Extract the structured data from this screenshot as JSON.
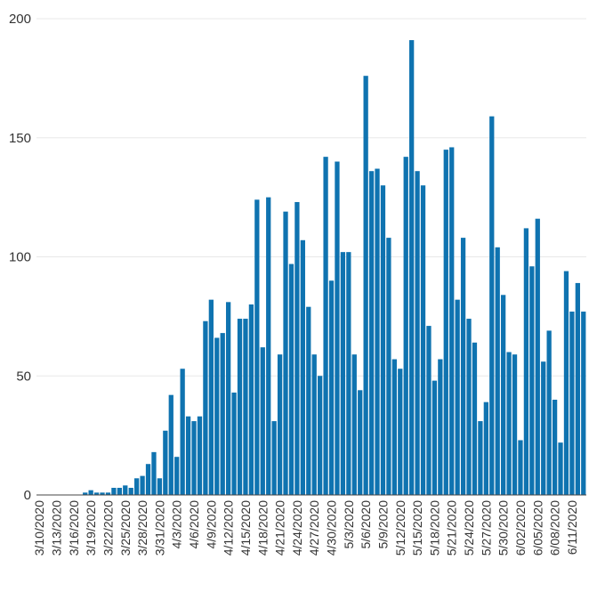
{
  "chart_data": {
    "type": "bar",
    "title": "",
    "xlabel": "",
    "ylabel": "",
    "ylim": [
      0,
      200
    ],
    "yticks": [
      0,
      50,
      100,
      150,
      200
    ],
    "grid": true,
    "bar_color": "#0f73b0",
    "x_tick_labels": [
      "3/10/2020",
      "3/13/2020",
      "3/16/2020",
      "3/19/2020",
      "3/22/2020",
      "3/25/2020",
      "3/28/2020",
      "3/31/2020",
      "4/3/2020",
      "4/6/2020",
      "4/9/2020",
      "4/12/2020",
      "4/15/2020",
      "4/18/2020",
      "4/21/2020",
      "4/24/2020",
      "4/27/2020",
      "4/30/2020",
      "5/3/2020",
      "5/6/2020",
      "5/9/2020",
      "5/12/2020",
      "5/15/2020",
      "5/18/2020",
      "5/21/2020",
      "5/24/2020",
      "5/27/2020",
      "5/30/2020",
      "6/02/2020",
      "6/05/2020",
      "6/08/2020",
      "6/11/2020"
    ],
    "values": [
      0,
      0,
      0,
      0,
      0,
      0,
      0,
      0,
      1,
      2,
      1,
      1,
      1,
      3,
      3,
      4,
      3,
      7,
      8,
      13,
      18,
      7,
      27,
      42,
      16,
      53,
      33,
      31,
      33,
      73,
      82,
      66,
      68,
      81,
      43,
      74,
      74,
      80,
      124,
      62,
      125,
      31,
      59,
      119,
      97,
      123,
      107,
      79,
      59,
      50,
      142,
      90,
      140,
      102,
      102,
      59,
      44,
      176,
      136,
      137,
      130,
      108,
      57,
      53,
      142,
      191,
      136,
      130,
      71,
      48,
      57,
      145,
      146,
      82,
      108,
      74,
      64,
      31,
      39,
      159,
      104,
      84,
      60,
      59,
      23,
      112,
      96,
      116,
      56,
      69,
      40,
      22,
      94,
      77,
      89,
      77
    ]
  }
}
